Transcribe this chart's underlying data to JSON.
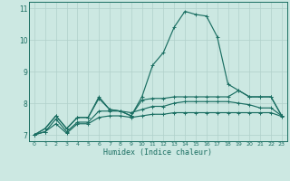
{
  "xlabel": "Humidex (Indice chaleur)",
  "ylabel": "",
  "background_color": "#cce8e2",
  "grid_color": "#b0d0ca",
  "line_color": "#1a6e62",
  "x_values": [
    0,
    1,
    2,
    3,
    4,
    5,
    6,
    7,
    8,
    9,
    10,
    11,
    12,
    13,
    14,
    15,
    16,
    17,
    18,
    19,
    20,
    21,
    22,
    23
  ],
  "series1": [
    7.0,
    7.2,
    7.6,
    7.2,
    7.55,
    7.55,
    8.2,
    7.8,
    7.75,
    7.6,
    8.2,
    9.2,
    9.6,
    10.4,
    10.9,
    10.8,
    10.75,
    10.1,
    8.6,
    8.4,
    8.2,
    8.2,
    8.2,
    7.6
  ],
  "series2": [
    7.0,
    7.2,
    7.6,
    7.2,
    7.55,
    7.55,
    8.15,
    7.8,
    7.75,
    7.6,
    8.1,
    8.15,
    8.15,
    8.2,
    8.2,
    8.2,
    8.2,
    8.2,
    8.2,
    8.4,
    8.2,
    8.2,
    8.2,
    7.6
  ],
  "series3": [
    7.0,
    7.1,
    7.5,
    7.1,
    7.4,
    7.4,
    7.75,
    7.75,
    7.75,
    7.7,
    7.8,
    7.9,
    7.9,
    8.0,
    8.05,
    8.05,
    8.05,
    8.05,
    8.05,
    8.0,
    7.95,
    7.85,
    7.85,
    7.6
  ],
  "series4": [
    7.0,
    7.1,
    7.35,
    7.05,
    7.35,
    7.35,
    7.55,
    7.6,
    7.6,
    7.55,
    7.6,
    7.65,
    7.65,
    7.7,
    7.7,
    7.7,
    7.7,
    7.7,
    7.7,
    7.7,
    7.7,
    7.7,
    7.7,
    7.58
  ],
  "ylim": [
    6.8,
    11.2
  ],
  "yticks": [
    7,
    8,
    9,
    10,
    11
  ],
  "xlim": [
    -0.5,
    23.5
  ],
  "xticks": [
    0,
    1,
    2,
    3,
    4,
    5,
    6,
    7,
    8,
    9,
    10,
    11,
    12,
    13,
    14,
    15,
    16,
    17,
    18,
    19,
    20,
    21,
    22,
    23
  ],
  "xtick_labels": [
    "0",
    "1",
    "2",
    "3",
    "4",
    "5",
    "6",
    "7",
    "8",
    "9",
    "10",
    "11",
    "12",
    "13",
    "14",
    "15",
    "16",
    "17",
    "18",
    "19",
    "20",
    "21",
    "22",
    "23"
  ]
}
